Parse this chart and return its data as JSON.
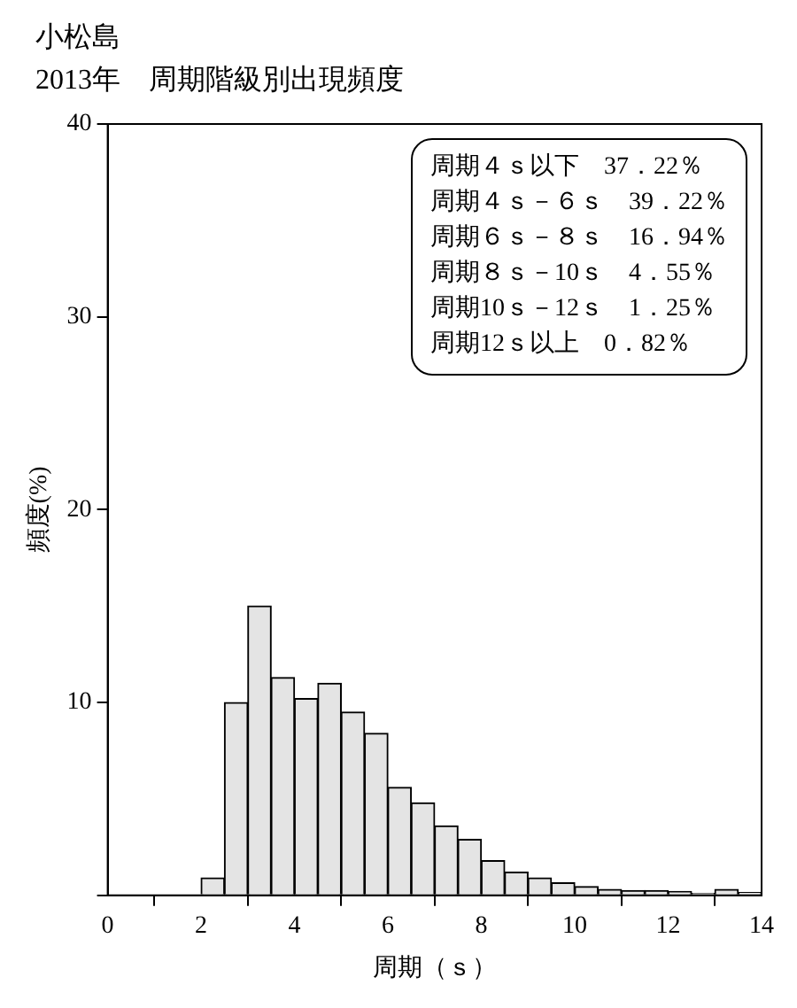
{
  "chart_data": {
    "type": "histogram",
    "title": "小松島",
    "subtitle": "2013年　周期階級別出現頻度",
    "xlabel": "周期（ｓ）",
    "ylabel": "頻度(%)",
    "bins": [
      2,
      2.5,
      3,
      3.5,
      4,
      4.5,
      5,
      5.5,
      6,
      6.5,
      7,
      7.5,
      8,
      8.5,
      9,
      9.5,
      10,
      10.5,
      11,
      11.5,
      12,
      12.5,
      13,
      13.5,
      14
    ],
    "values": [
      0.9,
      10.0,
      15.0,
      11.3,
      10.2,
      11.0,
      9.5,
      8.4,
      5.6,
      4.8,
      3.6,
      2.9,
      1.8,
      1.2,
      0.9,
      0.65,
      0.45,
      0.3,
      0.25,
      0.25,
      0.2,
      0.1,
      0.3,
      0.15
    ],
    "color": "#e4e4e4",
    "xlim": [
      0,
      14
    ],
    "xticks": [
      0,
      2,
      4,
      6,
      8,
      10,
      12,
      14
    ],
    "ylim": [
      0,
      40
    ],
    "yticks": [
      {
        "value": 0,
        "label": null
      },
      10,
      20,
      30,
      40
    ],
    "grid": false,
    "annotations": [
      "周期４ｓ以下　37．22％",
      "周期４ｓ－６ｓ　39．22％",
      "周期６ｓ－８ｓ　16．94％",
      "周期８ｓ－10ｓ　4．55％",
      "周期10ｓ－12ｓ　1．25％",
      "周期12ｓ以上　0．82％"
    ]
  }
}
